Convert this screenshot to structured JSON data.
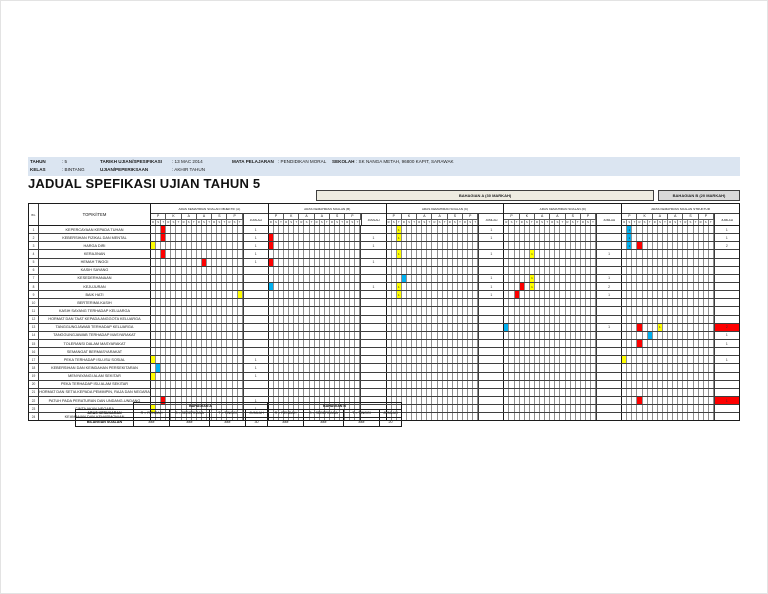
{
  "page": {
    "title": "JADUAL SPEFIKASI UJIAN TAHUN 5",
    "info": {
      "tahun_label": "TAHUN",
      "tahun_value": ": 5",
      "kelas_label": "KELAS",
      "kelas_value": ": BINTANG",
      "tarikh_label": "TARIKH UJIAN/SPESIFIKASI",
      "tarikh_value": ": 13 MAC 2014",
      "ujian_label": "UJIAN/PEPERIKSAAN",
      "ujian_value": ": AKHIR TAHUN",
      "mata_label": "MATA PELAJARAN",
      "mata_value": ": PENDIDIKAN MORAL",
      "sekolah_label": "SEKOLAH",
      "sekolah_value": ": SK NANGA METAH, 96800 KAPIT, SARAWAK"
    }
  },
  "table": {
    "banner_a": "BAHAGIAN A (30 MARKAH)",
    "banner_b": "BAHAGIAN B (20 MARKAH)",
    "bil_header": "BIL",
    "topik_header": "TOPIK/ITEM",
    "jumlah_header": "JUMLAH",
    "groups": [
      "ARAS KEMAHIRAN SOALAN OBJEKTIF (A)",
      "ARAS KEMAHIRAN SOALAN (B)",
      "ARAS KEMAHIRAN SOALAN (C)",
      "ARAS KEMAHIRAN SOALAN (D)",
      "ARAS KEMAHIRAN SOALAN STRUKTUR"
    ],
    "taxonomy_letters": [
      "P",
      "K",
      "A",
      "A",
      "S",
      "P"
    ],
    "difficulty_letters": [
      "R",
      "S",
      "T"
    ],
    "rows": [
      {
        "bil": "1",
        "topik": "KEPERCAYAAN KEPADA TUHAN"
      },
      {
        "bil": "2",
        "topik": "KEBERSIHAN FIZIKAL DAN MENTAL"
      },
      {
        "bil": "3",
        "topik": "HARGA DIRI"
      },
      {
        "bil": "4",
        "topik": "KERAJINAN"
      },
      {
        "bil": "5",
        "topik": "HEMAH TINGGI"
      },
      {
        "bil": "6",
        "topik": "KASIH SAYANG"
      },
      {
        "bil": "7",
        "topik": "KESEDERHANAAN"
      },
      {
        "bil": "8",
        "topik": "KEJUJURAN"
      },
      {
        "bil": "9",
        "topik": "BAIK HATI"
      },
      {
        "bil": "10",
        "topik": "BERTERIMA KASIH"
      },
      {
        "bil": "11",
        "topik": "KASIH SAYANG TERHADAP KELUARGA"
      },
      {
        "bil": "12",
        "topik": "HORMAT DAN TAAT KEPADA ANGGOTA KELUARGA"
      },
      {
        "bil": "13",
        "topik": "TANGGUNGJAWAB TERHADAP KELUARGA"
      },
      {
        "bil": "14",
        "topik": "TANGGUNGJAWAB TERHADAP MASYARAKAT"
      },
      {
        "bil": "15",
        "topik": "TOLERANSI DALAM MASYARAKAT"
      },
      {
        "bil": "16",
        "topik": "SEMANGAT BERMASYARAKAT"
      },
      {
        "bil": "17",
        "topik": "PEKA TERHADAP ISU-ISU SOSIAL"
      },
      {
        "bil": "18",
        "topik": "KEBERSIHAN DAN KEINDAHAN PERSEKITARAN"
      },
      {
        "bil": "19",
        "topik": "MENYAYANGI ALAM SEKITAR"
      },
      {
        "bil": "20",
        "topik": "PEKA TERHADAP ISU ALAM SEKITAR"
      },
      {
        "bil": "21",
        "topik": "HORMAT DAN SETIA KEPADA PEMIMPIN, RAJA DAN NEGARA"
      },
      {
        "bil": "22",
        "topik": "PATUH PADA PERATURAN DAN UNDANG-UNDANG"
      },
      {
        "bil": "23",
        "topik": "CINTA AKAN NEGARA"
      },
      {
        "bil": "24",
        "topik": "KEAMANAN DAN KEHARMONIAN"
      }
    ],
    "marks": [
      {
        "row": 1,
        "group": 0,
        "col": 2,
        "color": "red"
      },
      {
        "row": 2,
        "group": 0,
        "col": 2,
        "color": "red"
      },
      {
        "row": 3,
        "group": 0,
        "col": 0,
        "color": "yellow"
      },
      {
        "row": 4,
        "group": 0,
        "col": 2,
        "color": "red"
      },
      {
        "row": 5,
        "group": 0,
        "col": 10,
        "color": "red"
      },
      {
        "row": 9,
        "group": 0,
        "col": 17,
        "color": "yellow"
      },
      {
        "row": 17,
        "group": 0,
        "col": 0,
        "color": "yellow"
      },
      {
        "row": 18,
        "group": 0,
        "col": 1,
        "color": "blue"
      },
      {
        "row": 19,
        "group": 0,
        "col": 0,
        "color": "yellow"
      },
      {
        "row": 22,
        "group": 0,
        "col": 2,
        "color": "red"
      },
      {
        "row": 23,
        "group": 0,
        "col": 0,
        "color": "yellow"
      },
      {
        "row": 2,
        "group": 1,
        "col": 0,
        "color": "red"
      },
      {
        "row": 3,
        "group": 1,
        "col": 0,
        "color": "red"
      },
      {
        "row": 5,
        "group": 1,
        "col": 0,
        "color": "red"
      },
      {
        "row": 8,
        "group": 1,
        "col": 0,
        "color": "blue"
      },
      {
        "row": 1,
        "group": 2,
        "col": 2,
        "color": "yellow",
        "text": "1"
      },
      {
        "row": 2,
        "group": 2,
        "col": 2,
        "color": "yellow",
        "text": "1"
      },
      {
        "row": 4,
        "group": 2,
        "col": 2,
        "color": "yellow",
        "text": "1"
      },
      {
        "row": 7,
        "group": 2,
        "col": 3,
        "color": "blue"
      },
      {
        "row": 8,
        "group": 2,
        "col": 2,
        "color": "yellow",
        "text": "1"
      },
      {
        "row": 9,
        "group": 2,
        "col": 2,
        "color": "yellow",
        "text": "1"
      },
      {
        "row": 4,
        "group": 3,
        "col": 5,
        "color": "yellow",
        "text": "1"
      },
      {
        "row": 7,
        "group": 3,
        "col": 5,
        "color": "yellow",
        "text": "1"
      },
      {
        "row": 8,
        "group": 3,
        "col": 5,
        "color": "yellow",
        "text": "1"
      },
      {
        "row": 8,
        "group": 3,
        "col": 3,
        "color": "red"
      },
      {
        "row": 9,
        "group": 3,
        "col": 2,
        "color": "red"
      },
      {
        "row": 13,
        "group": 3,
        "col": 0,
        "color": "blue"
      },
      {
        "row": 1,
        "group": 4,
        "col": 1,
        "color": "blue",
        "text": "1"
      },
      {
        "row": 2,
        "group": 4,
        "col": 1,
        "color": "blue",
        "text": "1"
      },
      {
        "row": 3,
        "group": 4,
        "col": 1,
        "color": "blue",
        "text": "1"
      },
      {
        "row": 3,
        "group": 4,
        "col": 3,
        "color": "red"
      },
      {
        "row": 13,
        "group": 4,
        "col": 3,
        "color": "red"
      },
      {
        "row": 13,
        "group": 4,
        "col": 7,
        "color": "yellow",
        "text": "1"
      },
      {
        "row": 14,
        "group": 4,
        "col": 5,
        "color": "blue"
      },
      {
        "row": 15,
        "group": 4,
        "col": 3,
        "color": "red"
      },
      {
        "row": 17,
        "group": 4,
        "col": 0,
        "color": "yellow"
      },
      {
        "row": 22,
        "group": 4,
        "col": 3,
        "color": "red"
      }
    ],
    "jumlah_values": [
      {
        "row": 1,
        "group": 0,
        "value": "1"
      },
      {
        "row": 2,
        "group": 0,
        "value": "1"
      },
      {
        "row": 3,
        "group": 0,
        "value": "1"
      },
      {
        "row": 4,
        "group": 0,
        "value": "1"
      },
      {
        "row": 5,
        "group": 0,
        "value": "1"
      },
      {
        "row": 17,
        "group": 0,
        "value": "1"
      },
      {
        "row": 18,
        "group": 0,
        "value": "1"
      },
      {
        "row": 19,
        "group": 0,
        "value": "1"
      },
      {
        "row": 22,
        "group": 0,
        "value": "1"
      },
      {
        "row": 23,
        "group": 0,
        "value": "1"
      },
      {
        "row": 2,
        "group": 1,
        "value": "1"
      },
      {
        "row": 3,
        "group": 1,
        "value": "1"
      },
      {
        "row": 5,
        "group": 1,
        "value": "1"
      },
      {
        "row": 8,
        "group": 1,
        "value": "1"
      },
      {
        "row": 1,
        "group": 2,
        "value": "1"
      },
      {
        "row": 2,
        "group": 2,
        "value": "1"
      },
      {
        "row": 4,
        "group": 2,
        "value": "1"
      },
      {
        "row": 7,
        "group": 2,
        "value": "1"
      },
      {
        "row": 8,
        "group": 2,
        "value": "1"
      },
      {
        "row": 9,
        "group": 2,
        "value": "1"
      },
      {
        "row": 4,
        "group": 3,
        "value": "1"
      },
      {
        "row": 7,
        "group": 3,
        "value": "1"
      },
      {
        "row": 8,
        "group": 3,
        "value": "2"
      },
      {
        "row": 9,
        "group": 3,
        "value": "1"
      },
      {
        "row": 13,
        "group": 3,
        "value": "1"
      },
      {
        "row": 1,
        "group": 4,
        "value": "1"
      },
      {
        "row": 2,
        "group": 4,
        "value": "1"
      },
      {
        "row": 3,
        "group": 4,
        "value": "2"
      },
      {
        "row": 13,
        "group": 4,
        "value": "2",
        "color": "red"
      },
      {
        "row": 14,
        "group": 4,
        "value": "1"
      },
      {
        "row": 15,
        "group": 4,
        "value": "1"
      },
      {
        "row": 17,
        "group": 4,
        "value": "1"
      },
      {
        "row": 22,
        "group": 4,
        "value": "1",
        "color": "red"
      }
    ],
    "colors": {
      "red": "#fe0000",
      "yellow": "#ffff00",
      "blue": "#00b0f0",
      "banner_a_bg": "#eeece1",
      "banner_b_bg": "#d9d9d9",
      "info_bg": "#dbe5f1"
    }
  },
  "summary": {
    "section_a_header": "BAHAGIAN A",
    "section_b_header": "BAHAGIAN B",
    "row1_label": "ARAS KESUKARAN",
    "row2_label": "BILANGAN SOALAN",
    "col_headers": [
      "R = RENDAH",
      "S = SEDERHANA",
      "T = TINGGI",
      "JUMLAH"
    ],
    "values_a": [
      "###",
      "###",
      "###",
      "30"
    ],
    "values_b": [
      "###",
      "###",
      "###",
      "20"
    ]
  }
}
